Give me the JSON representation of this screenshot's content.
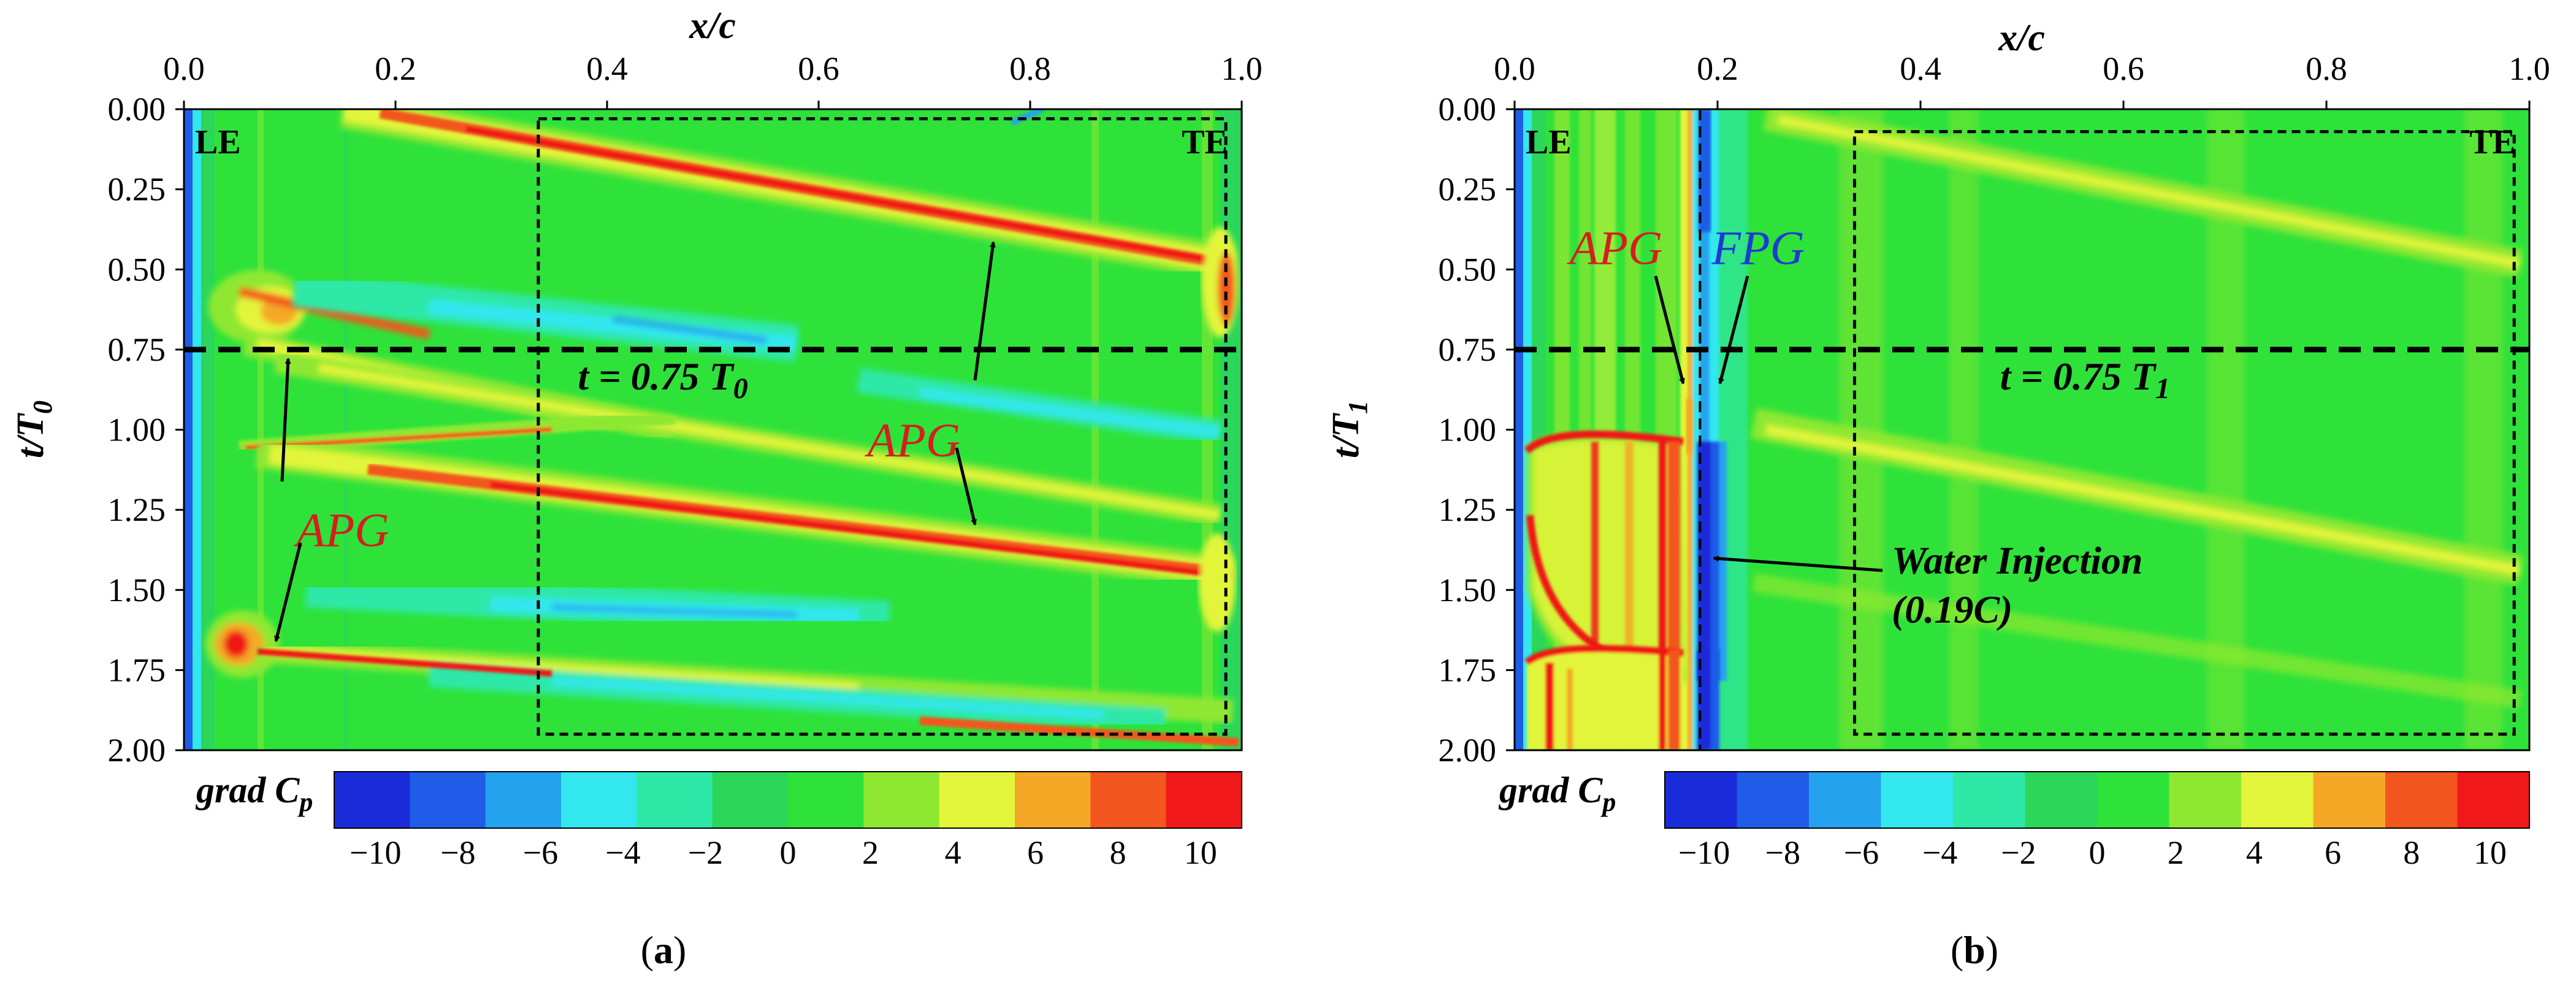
{
  "chart_data": [
    {
      "type": "heatmap",
      "panel": "a",
      "caption_letter": "a",
      "xlabel": "x/c",
      "ylabel_main": "t/T",
      "ylabel_sub": "0",
      "x_ticks": [
        "0.0",
        "0.2",
        "0.4",
        "0.6",
        "0.8",
        "1.0"
      ],
      "x_tick_values": [
        0.0,
        0.2,
        0.4,
        0.6,
        0.8,
        1.0
      ],
      "y_ticks": [
        "0.00",
        "0.25",
        "0.50",
        "0.75",
        "1.00",
        "1.25",
        "1.50",
        "1.75",
        "2.00"
      ],
      "y_tick_values": [
        0.0,
        0.25,
        0.5,
        0.75,
        1.0,
        1.25,
        1.5,
        1.75,
        2.0
      ],
      "xlim": [
        0.0,
        1.0
      ],
      "ylim": [
        0.0,
        2.0
      ],
      "corner_labels": {
        "left": "LE",
        "right": "TE"
      },
      "reference_line": {
        "t": 0.75,
        "label_main": "t = 0.75 T",
        "label_sub": "0"
      },
      "annotations": [
        {
          "text": "APG",
          "x": 0.15,
          "t": 1.31
        },
        {
          "text": "APG",
          "x": 0.69,
          "t": 1.03
        }
      ],
      "dashed_box": {
        "x": [
          0.335,
          0.985
        ],
        "t": [
          0.03,
          1.95
        ]
      },
      "colorbar": {
        "title_main": "grad C",
        "title_sub": "p",
        "ticks": [
          "−10",
          "−8",
          "−6",
          "−4",
          "−2",
          "0",
          "2",
          "4",
          "6",
          "8",
          "10"
        ],
        "tick_values": [
          -10,
          -8,
          -6,
          -4,
          -2,
          0,
          2,
          4,
          6,
          8,
          10
        ],
        "range": [
          -11,
          11
        ],
        "colors": [
          "#1a2bd9",
          "#1f5ce8",
          "#25a2ee",
          "#33e7ee",
          "#2ee8a8",
          "#2bd65a",
          "#2ee23a",
          "#8ee831",
          "#e3f53a",
          "#f5a826",
          "#f3561f",
          "#f01818"
        ]
      }
    },
    {
      "type": "heatmap",
      "panel": "b",
      "caption_letter": "b",
      "xlabel": "x/c",
      "ylabel_main": "t/T",
      "ylabel_sub": "1",
      "x_ticks": [
        "0.0",
        "0.2",
        "0.4",
        "0.6",
        "0.8",
        "1.0"
      ],
      "x_tick_values": [
        0.0,
        0.2,
        0.4,
        0.6,
        0.8,
        1.0
      ],
      "y_ticks": [
        "0.00",
        "0.25",
        "0.50",
        "0.75",
        "1.00",
        "1.25",
        "1.50",
        "1.75",
        "2.00"
      ],
      "y_tick_values": [
        0.0,
        0.25,
        0.5,
        0.75,
        1.0,
        1.25,
        1.5,
        1.75,
        2.0
      ],
      "xlim": [
        0.0,
        1.0
      ],
      "ylim": [
        0.0,
        2.0
      ],
      "corner_labels": {
        "left": "LE",
        "right": "TE"
      },
      "reference_line": {
        "t": 0.75,
        "label_main": "t = 0.75 T",
        "label_sub": "1"
      },
      "annotations": [
        {
          "text": "APG",
          "x": 0.1,
          "t": 0.43
        },
        {
          "text": "FPG",
          "x": 0.24,
          "t": 0.43
        }
      ],
      "injection": {
        "label": "Water Injection",
        "sublabel_main": "(0.19",
        "sublabel_var": "C",
        "sublabel_end": ")",
        "x": 0.19
      },
      "dashed_box": {
        "x": [
          0.335,
          0.985
        ],
        "t": [
          0.07,
          1.95
        ]
      },
      "colorbar": {
        "title_main": "grad C",
        "title_sub": "p",
        "ticks": [
          "−10",
          "−8",
          "−6",
          "−4",
          "−2",
          "0",
          "2",
          "4",
          "6",
          "8",
          "10"
        ],
        "tick_values": [
          -10,
          -8,
          -6,
          -4,
          -2,
          0,
          2,
          4,
          6,
          8,
          10
        ],
        "range": [
          -11,
          11
        ],
        "colors": [
          "#1a2bd9",
          "#1f5ce8",
          "#25a2ee",
          "#33e7ee",
          "#2ee8a8",
          "#2bd65a",
          "#2ee23a",
          "#8ee831",
          "#e3f53a",
          "#f5a826",
          "#f3561f",
          "#f01818"
        ]
      }
    }
  ]
}
